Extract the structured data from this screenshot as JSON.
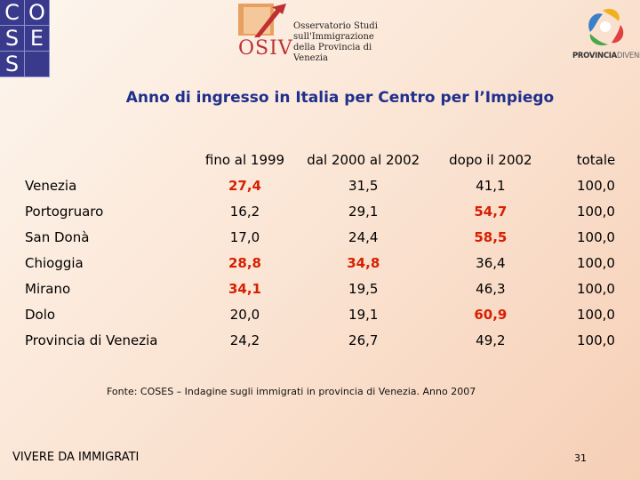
{
  "logos": {
    "coses_letters": [
      "C",
      "O",
      "S",
      "E",
      "S",
      ""
    ],
    "osiv_word": "OSIV",
    "osiv_lines": [
      "Osservatorio Studi",
      "sull'Immigrazione",
      "della Provincia di Venezia"
    ],
    "provincia_bold": "PROVINCIA",
    "provincia_light": "DIVENEZIA"
  },
  "title": "Anno di ingresso in Italia per Centro per l’Impiego",
  "table": {
    "headers": [
      "",
      "fino al 1999",
      "dal 2000 al 2002",
      "dopo il 2002",
      "totale"
    ],
    "rows": [
      {
        "name": "Venezia",
        "cells": [
          {
            "v": "27,4",
            "hl": true
          },
          {
            "v": "31,5",
            "hl": false
          },
          {
            "v": "41,1",
            "hl": false
          },
          {
            "v": "100,0",
            "hl": false
          }
        ]
      },
      {
        "name": "Portogruaro",
        "cells": [
          {
            "v": "16,2",
            "hl": false
          },
          {
            "v": "29,1",
            "hl": false
          },
          {
            "v": "54,7",
            "hl": true
          },
          {
            "v": "100,0",
            "hl": false
          }
        ]
      },
      {
        "name": "San Donà",
        "cells": [
          {
            "v": "17,0",
            "hl": false
          },
          {
            "v": "24,4",
            "hl": false
          },
          {
            "v": "58,5",
            "hl": true
          },
          {
            "v": "100,0",
            "hl": false
          }
        ]
      },
      {
        "name": "Chioggia",
        "cells": [
          {
            "v": "28,8",
            "hl": true
          },
          {
            "v": "34,8",
            "hl": true
          },
          {
            "v": "36,4",
            "hl": false
          },
          {
            "v": "100,0",
            "hl": false
          }
        ]
      },
      {
        "name": "Mirano",
        "cells": [
          {
            "v": "34,1",
            "hl": true
          },
          {
            "v": "19,5",
            "hl": false
          },
          {
            "v": "46,3",
            "hl": false
          },
          {
            "v": "100,0",
            "hl": false
          }
        ]
      },
      {
        "name": "Dolo",
        "cells": [
          {
            "v": "20,0",
            "hl": false
          },
          {
            "v": "19,1",
            "hl": false
          },
          {
            "v": "60,9",
            "hl": true
          },
          {
            "v": "100,0",
            "hl": false
          }
        ]
      },
      {
        "name": "Provincia di Venezia",
        "cells": [
          {
            "v": "24,2",
            "hl": false
          },
          {
            "v": "26,7",
            "hl": false
          },
          {
            "v": "49,2",
            "hl": false
          },
          {
            "v": "100,0",
            "hl": false
          }
        ]
      }
    ]
  },
  "source": "Fonte: COSES – Indagine sugli immigrati in provincia di Venezia. Anno 2007",
  "footer": {
    "title": "VIVERE DA IMMIGRATI",
    "page": "31"
  },
  "colors": {
    "title": "#1f2f8c",
    "highlight": "#d62000",
    "coses_bg": "#3a3a8c"
  }
}
